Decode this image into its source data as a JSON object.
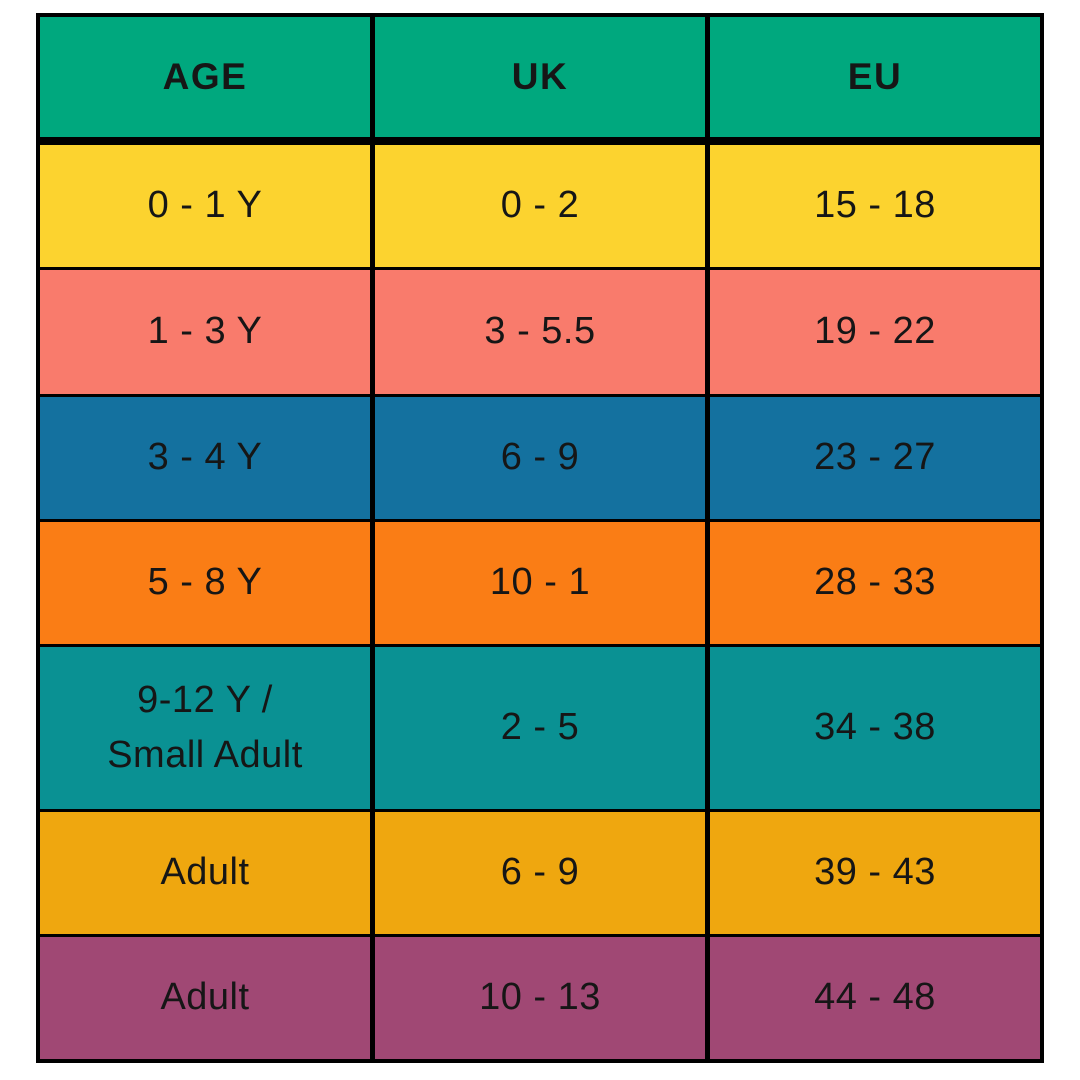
{
  "chart_data": {
    "type": "table",
    "columns": [
      "AGE",
      "UK",
      "EU"
    ],
    "rows": [
      [
        "0 - 1 Y",
        "0 - 2",
        "15 - 18"
      ],
      [
        "1 - 3 Y",
        "3 - 5.5",
        "19 - 22"
      ],
      [
        "3 - 4 Y",
        "6 - 9",
        "23 - 27"
      ],
      [
        "5 - 8 Y",
        "10 - 1",
        "28 - 33"
      ],
      [
        "9-12 Y / Small Adult",
        "2 - 5",
        "34 - 38"
      ],
      [
        "Adult",
        "6 - 9",
        "39 - 43"
      ],
      [
        "Adult",
        "10 - 13",
        "44 - 48"
      ]
    ]
  },
  "table": {
    "header": {
      "bg": "#00A87E",
      "cells": [
        "AGE",
        "UK",
        "EU"
      ]
    },
    "rows": [
      {
        "bg": "#FCD32F",
        "age_lines": [
          "0 - 1 Y"
        ],
        "uk": "0 - 2",
        "eu": "15 - 18"
      },
      {
        "bg": "#F97B6C",
        "age_lines": [
          "1 - 3 Y"
        ],
        "uk": "3 - 5.5",
        "eu": "19 - 22"
      },
      {
        "bg": "#14719F",
        "age_lines": [
          "3 - 4 Y"
        ],
        "uk": "6 - 9",
        "eu": "23 - 27"
      },
      {
        "bg": "#FA7D15",
        "age_lines": [
          "5 - 8 Y"
        ],
        "uk": "10 - 1",
        "eu": "28 - 33"
      },
      {
        "bg": "#0A9193",
        "age_lines": [
          "9-12 Y /",
          "Small Adult"
        ],
        "uk": "2 - 5",
        "eu": "34 - 38"
      },
      {
        "bg": "#EFA70F",
        "age_lines": [
          "Adult"
        ],
        "uk": "6 - 9",
        "eu": "39 - 43"
      },
      {
        "bg": "#A04874",
        "age_lines": [
          "Adult"
        ],
        "uk": "10 - 13",
        "eu": "44 - 48"
      }
    ],
    "colors": {
      "border": "#000000",
      "text": "#161616",
      "page_background": "#FFFFFF"
    }
  }
}
